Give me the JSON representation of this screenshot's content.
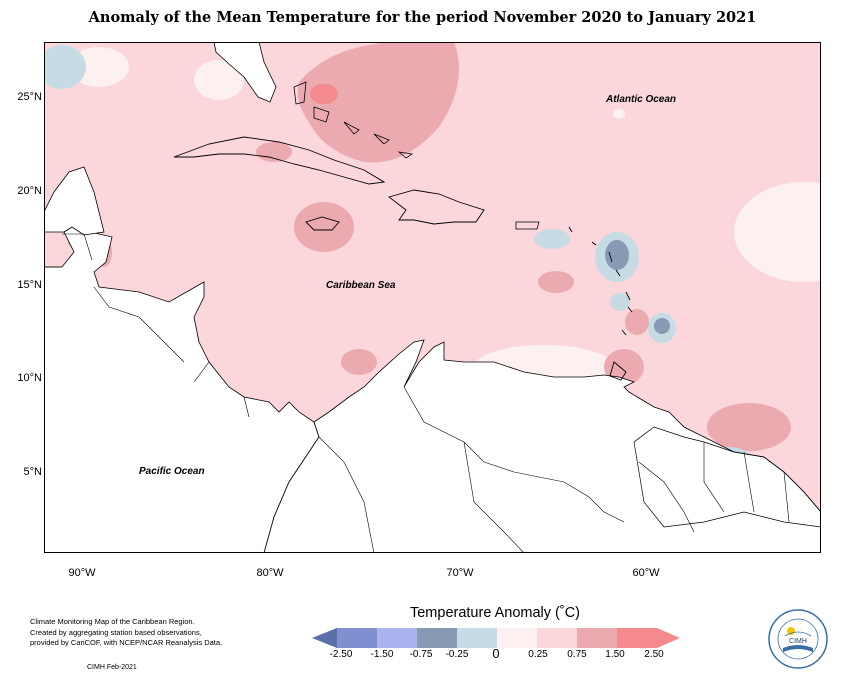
{
  "title": "Anomaly of the Mean Temperature for the period November 2020 to January 2021",
  "map": {
    "oceans": {
      "atlantic": "Atlantic Ocean",
      "caribbean": "Caribbean Sea",
      "pacific": "Pacific Ocean"
    },
    "lat_labels": [
      "25°N",
      "20°N",
      "15°N",
      "10°N",
      "5°N"
    ],
    "lon_labels": [
      "90°W",
      "80°W",
      "70°W",
      "60°W"
    ]
  },
  "legend": {
    "title": "Temperature Anomaly (˚C)",
    "ticks": [
      "-2.50",
      "-1.50",
      "-0.75",
      "-0.25",
      "0",
      "0.25",
      "0.75",
      "1.50",
      "2.50"
    ],
    "colors": [
      "#5b6fa8",
      "#7f8fd0",
      "#a9b4ee",
      "#8899b4",
      "#c7dbe4",
      "#fdf0f1",
      "#fbd7dc",
      "#eaaab0",
      "#f48a8e"
    ]
  },
  "footer": {
    "line1": "Climate Monitoring Map of the Caribbean Region.",
    "line2": "Created by aggregating station based observations,",
    "line3": "provided by CariCOF, with NCEP/NCAR Reanalysis Data.",
    "credit": "CIMH Feb-2021",
    "logo_text": "CIMH"
  }
}
